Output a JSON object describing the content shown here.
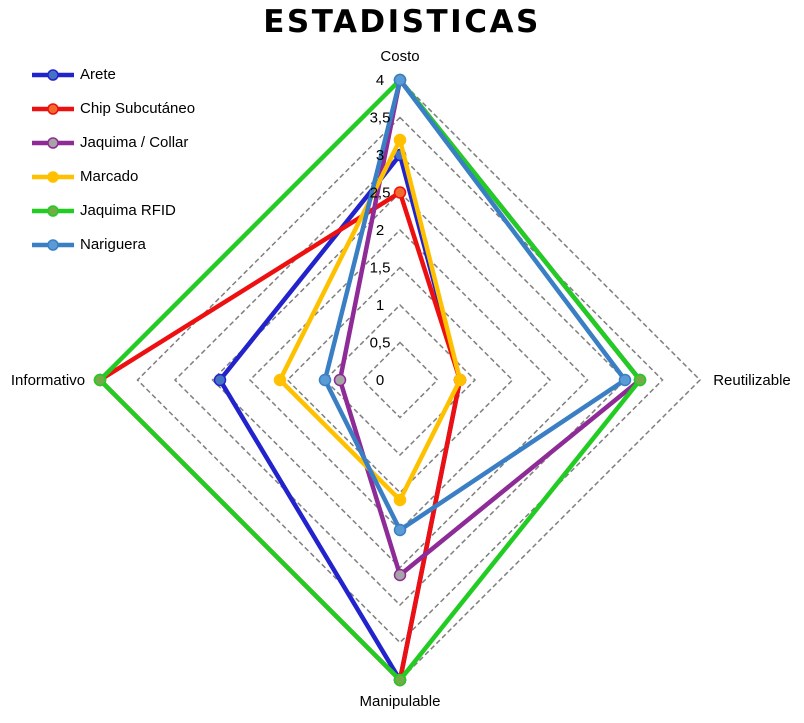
{
  "chart_data": {
    "type": "radar",
    "title": "ESTADISTICAS",
    "axes": [
      "Costo",
      "Reutilizable",
      "Manipulable",
      "Informativo"
    ],
    "r_range": [
      0,
      4
    ],
    "r_ticks": [
      "0",
      "0,5",
      "1",
      "1,5",
      "2",
      "2,5",
      "3",
      "3,5",
      "4"
    ],
    "grid": true,
    "legend_position": "top-left",
    "series": [
      {
        "name": "Arete",
        "color": "#2323CC",
        "marker": "#4472C4",
        "values": [
          3,
          0.8,
          4,
          2.4
        ]
      },
      {
        "name": "Chip Subcutáneo",
        "color": "#EE1010",
        "marker": "#F26A2C",
        "values": [
          2.5,
          0.8,
          4,
          4
        ]
      },
      {
        "name": "Jaquima / Collar",
        "color": "#8E2B96",
        "marker": "#A5A5A5",
        "values": [
          4,
          3.2,
          2.6,
          0.8
        ]
      },
      {
        "name": "Marcado",
        "color": "#FFC000",
        "marker": "#FFC000",
        "values": [
          3.2,
          0.8,
          1.6,
          1.6
        ]
      },
      {
        "name": "Jaquima RFID",
        "color": "#22CC22",
        "marker": "#70AD47",
        "values": [
          4,
          3.2,
          4,
          4
        ]
      },
      {
        "name": "Nariguera",
        "color": "#3A7FC4",
        "marker": "#5B9BD5",
        "values": [
          4,
          3,
          2,
          1
        ]
      }
    ]
  }
}
